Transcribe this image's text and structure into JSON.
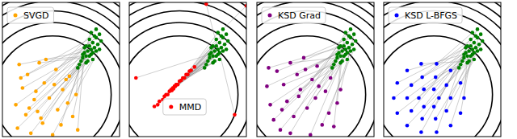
{
  "chart_data": [
    {
      "type": "scatter",
      "xlim": [
        -3,
        4
      ],
      "ylim": [
        -2.5,
        5.5
      ],
      "tick_labels": false,
      "legend": "upper left",
      "contour_center": [
        0,
        0
      ],
      "contours": [
        3.5,
        4.3,
        5.0,
        5.6,
        6.1,
        6.6,
        7.0
      ],
      "series": [
        {
          "color": "#008000",
          "x": [
            2.1,
            2.4,
            1.8,
            2.6,
            2.2,
            1.9,
            2.8,
            2.3,
            1.6,
            2.5,
            2.0,
            2.7,
            2.2,
            1.7,
            2.9,
            2.4,
            2.0,
            2.6,
            1.5,
            2.3,
            2.1,
            2.8,
            1.9,
            2.5,
            2.2,
            2.0,
            2.6,
            1.8,
            2.4,
            2.3
          ],
          "y": [
            2.6,
            3.1,
            2.2,
            3.4,
            2.9,
            2.5,
            3.6,
            2.4,
            1.8,
            2.8,
            2.9,
            3.0,
            3.3,
            2.0,
            3.2,
            2.1,
            2.3,
            2.6,
            1.6,
            3.7,
            2.0,
            2.7,
            2.8,
            3.5,
            2.3,
            1.9,
            3.9,
            2.4,
            2.5,
            2.7
          ]
        },
        {
          "name": "SVGD",
          "color": "#ffa500",
          "x": [
            -2.0,
            -1.5,
            -0.8,
            0.2,
            1.0,
            -1.8,
            -0.5,
            0.6,
            1.4,
            -2.2,
            -1.1,
            -0.2,
            0.9,
            -1.6,
            -0.9,
            0.3,
            1.2,
            -2.1,
            -0.6,
            0.5,
            -1.3,
            0.0,
            1.5,
            -1.9,
            -0.4,
            0.8,
            -1.0,
            0.1,
            -1.4,
            -0.7
          ],
          "y": [
            1.8,
            1.2,
            1.9,
            1.5,
            1.1,
            0.4,
            0.7,
            0.3,
            0.0,
            -0.6,
            -0.3,
            -0.2,
            -0.5,
            -1.2,
            -1.0,
            -0.9,
            -1.3,
            -2.0,
            -1.7,
            -1.8,
            -2.3,
            -2.4,
            -2.1,
            1.0,
            2.1,
            0.9,
            0.2,
            0.6,
            -0.8,
            -1.4
          ]
        }
      ]
    },
    {
      "type": "scatter",
      "xlim": [
        -3,
        4
      ],
      "ylim": [
        -2.5,
        5.5
      ],
      "tick_labels": false,
      "legend": "lower center",
      "contour_center": [
        0,
        0
      ],
      "contours": [
        3.5,
        4.3,
        5.0,
        5.6,
        6.1,
        6.6,
        7.0
      ],
      "series": [
        {
          "color": "#008000",
          "x": [
            2.1,
            2.4,
            1.8,
            2.6,
            2.2,
            1.9,
            2.8,
            2.3,
            1.6,
            2.5,
            2.0,
            2.7,
            2.2,
            1.7,
            2.9,
            2.4,
            2.0,
            2.6,
            1.5,
            2.3,
            2.1,
            2.8,
            1.9,
            2.5,
            2.2,
            2.0,
            2.6,
            1.8,
            2.4,
            2.3
          ],
          "y": [
            2.6,
            3.1,
            2.2,
            3.4,
            2.9,
            2.5,
            3.6,
            2.4,
            1.8,
            2.8,
            2.9,
            3.0,
            3.3,
            2.0,
            3.2,
            2.1,
            2.3,
            2.6,
            1.6,
            3.7,
            2.0,
            2.7,
            2.8,
            3.5,
            2.3,
            1.9,
            3.9,
            2.4,
            2.5,
            2.7
          ]
        },
        {
          "name": "MMD",
          "color": "#ff0000",
          "x": [
            -1.5,
            -1.3,
            -1.2,
            -1.0,
            -0.9,
            -0.8,
            -0.7,
            -0.6,
            -0.5,
            -0.45,
            -0.4,
            -0.3,
            -0.25,
            -0.2,
            -0.1,
            0.0,
            0.1,
            0.2,
            0.3,
            0.4,
            0.5,
            0.6,
            0.7,
            0.9,
            -0.35,
            -0.15,
            4.0,
            -2.6,
            3.3,
            1.6
          ],
          "y": [
            -0.7,
            -0.6,
            -0.4,
            -0.3,
            -0.1,
            0.0,
            0.0,
            0.2,
            0.3,
            0.25,
            0.4,
            0.5,
            0.5,
            0.6,
            0.6,
            0.8,
            0.85,
            1.0,
            1.0,
            1.2,
            1.2,
            1.4,
            1.45,
            1.65,
            0.35,
            0.6,
            5.3,
            1.0,
            -1.2,
            5.4
          ]
        }
      ]
    },
    {
      "type": "scatter",
      "xlim": [
        -3,
        4
      ],
      "ylim": [
        -2.5,
        5.5
      ],
      "tick_labels": false,
      "legend": "upper left",
      "contour_center": [
        0,
        0
      ],
      "contours": [
        3.5,
        4.3,
        5.0,
        5.6,
        6.1,
        6.6,
        7.0
      ],
      "series": [
        {
          "color": "#008000",
          "x": [
            2.1,
            2.4,
            1.8,
            2.6,
            2.2,
            1.9,
            2.8,
            2.3,
            1.6,
            2.5,
            2.0,
            2.7,
            2.2,
            1.7,
            2.9,
            2.4,
            2.0,
            2.6,
            1.5,
            2.3,
            2.1,
            2.8,
            1.9,
            2.5,
            2.2,
            2.0,
            2.6,
            1.8,
            2.4,
            2.3
          ],
          "y": [
            2.6,
            3.1,
            2.2,
            3.4,
            2.9,
            2.5,
            3.6,
            2.4,
            1.8,
            2.8,
            2.9,
            3.0,
            3.3,
            2.0,
            3.2,
            2.1,
            2.3,
            2.6,
            1.6,
            3.7,
            2.0,
            2.7,
            2.8,
            3.5,
            2.3,
            1.9,
            3.9,
            2.4,
            2.5,
            2.7
          ]
        },
        {
          "name": "KSD Grad",
          "color": "#800080",
          "x": [
            -2.4,
            -1.8,
            -1.0,
            -0.2,
            0.6,
            1.4,
            2.0,
            -2.2,
            -1.4,
            -0.6,
            0.3,
            1.1,
            1.8,
            -2.0,
            -1.2,
            -0.4,
            0.5,
            1.3,
            -1.6,
            -0.8,
            0.0,
            0.9,
            -2.3,
            -1.0,
            0.2,
            1.6,
            -0.5,
            -1.5,
            0.7,
            -0.1
          ],
          "y": [
            0.5,
            1.4,
            1.9,
            2.2,
            1.7,
            1.0,
            0.3,
            -0.6,
            0.6,
            1.2,
            0.9,
            0.2,
            -0.5,
            -1.5,
            -0.4,
            0.3,
            -0.2,
            -1.1,
            -2.1,
            -1.3,
            -0.8,
            -1.8,
            1.6,
            -2.3,
            -2.4,
            -1.9,
            -0.1,
            -0.9,
            0.5,
            1.5
          ]
        }
      ]
    },
    {
      "type": "scatter",
      "xlim": [
        -3,
        4
      ],
      "ylim": [
        -2.5,
        5.5
      ],
      "tick_labels": false,
      "legend": "upper left",
      "contour_center": [
        0,
        0
      ],
      "contours": [
        3.5,
        4.3,
        5.0,
        5.6,
        6.1,
        6.6,
        7.0
      ],
      "series": [
        {
          "color": "#008000",
          "x": [
            2.1,
            2.4,
            1.8,
            2.6,
            2.2,
            1.9,
            2.8,
            2.3,
            1.6,
            2.5,
            2.0,
            2.7,
            2.2,
            1.7,
            2.9,
            2.4,
            2.0,
            2.6,
            1.5,
            2.3,
            2.1,
            2.8,
            1.9,
            2.5,
            2.2,
            2.0,
            2.6,
            1.8,
            2.4,
            2.3
          ],
          "y": [
            2.6,
            3.1,
            2.2,
            3.4,
            2.9,
            2.5,
            3.6,
            2.4,
            1.8,
            2.8,
            2.9,
            3.0,
            3.3,
            2.0,
            3.2,
            2.1,
            2.3,
            2.6,
            1.6,
            3.7,
            2.0,
            2.7,
            2.8,
            3.5,
            2.3,
            1.9,
            3.9,
            2.4,
            2.5,
            2.7
          ]
        },
        {
          "name": "KSD L-BFGS",
          "color": "#0000ff",
          "x": [
            0.3,
            0.0,
            -0.6,
            -0.9,
            -0.6,
            0.0,
            1.0,
            0.75,
            0.1,
            -0.7,
            -1.35,
            -1.6,
            -1.35,
            -0.7,
            0.1,
            0.75,
            1.8,
            1.59,
            1.0,
            0.16,
            -0.76,
            -1.6,
            -2.19,
            -2.4,
            -2.19,
            -1.6,
            -0.76,
            0.16,
            1.0,
            1.59
          ],
          "y": [
            -0.2,
            0.32,
            0.32,
            -0.2,
            -0.72,
            -0.72,
            -0.2,
            0.57,
            1.04,
            1.04,
            0.57,
            -0.2,
            -0.97,
            -1.44,
            -1.44,
            -0.97,
            -0.2,
            0.7,
            1.44,
            1.84,
            1.84,
            1.44,
            0.7,
            -0.2,
            -1.1,
            -1.84,
            -2.24,
            -2.24,
            -1.84,
            -1.1
          ]
        }
      ]
    }
  ]
}
